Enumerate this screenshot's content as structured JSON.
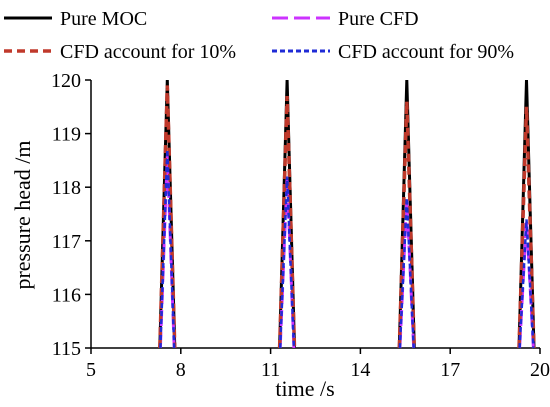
{
  "chart_data": {
    "type": "line",
    "title": "",
    "xlabel": "time /s",
    "ylabel": "pressure head /m",
    "xlim": [
      5,
      20
    ],
    "ylim": [
      115,
      120
    ],
    "xticks": [
      "5",
      "8",
      "11",
      "14",
      "17",
      "20"
    ],
    "yticks": [
      "115",
      "116",
      "117",
      "118",
      "119",
      "120"
    ],
    "grid": false,
    "legend_position": "top",
    "series": [
      {
        "name": "Pure MOC",
        "color": "#000000",
        "dash": "solid",
        "x": [
          7.3,
          7.55,
          7.8,
          11.3,
          11.55,
          11.8,
          15.3,
          15.55,
          15.8,
          19.3,
          19.55,
          19.8
        ],
        "y": [
          115,
          120,
          115,
          115,
          120,
          115,
          115,
          120,
          115,
          115,
          120,
          115
        ]
      },
      {
        "name": "Pure CFD",
        "color": "#cc33ff",
        "dash": "long-dash",
        "x": [
          7.32,
          7.55,
          7.78,
          11.32,
          11.55,
          11.78,
          15.32,
          15.55,
          15.78,
          19.32,
          19.55,
          19.78
        ],
        "y": [
          115,
          118.6,
          115,
          115,
          118.2,
          115,
          115,
          117.8,
          115,
          115,
          117.4,
          115
        ]
      },
      {
        "name": "CFD account for 10%",
        "color": "#c0392b",
        "dash": "dash",
        "x": [
          7.3,
          7.55,
          7.8,
          11.3,
          11.55,
          11.8,
          15.3,
          15.55,
          15.8,
          19.3,
          19.55,
          19.8
        ],
        "y": [
          115,
          119.9,
          115,
          115,
          119.7,
          115,
          115,
          119.6,
          115,
          115,
          119.5,
          115
        ]
      },
      {
        "name": "CFD account for 90%",
        "color": "#1f2bd6",
        "dash": "short-dash",
        "x": [
          7.32,
          7.55,
          7.78,
          11.32,
          11.55,
          11.78,
          15.32,
          15.55,
          15.78,
          19.32,
          19.55,
          19.78
        ],
        "y": [
          115,
          118.7,
          115,
          115,
          118.2,
          115,
          115,
          117.8,
          115,
          115,
          117.4,
          115
        ]
      }
    ]
  }
}
